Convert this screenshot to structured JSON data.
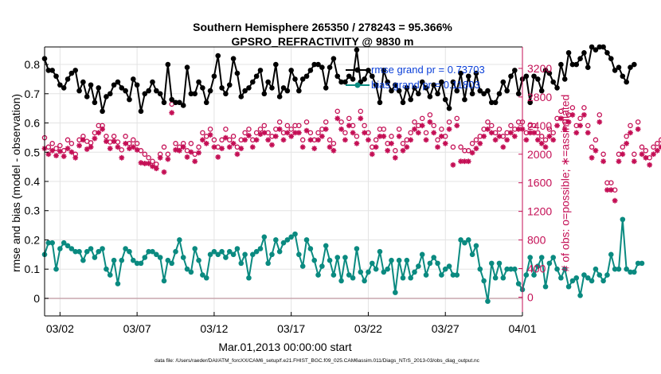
{
  "chart_data": {
    "type": "line",
    "title": "Southern Hemisphere 265350 / 278243 = 95.366%",
    "subtitle": "GPSRO_REFRACTIVITY @ 9830 m",
    "xlabel": "Mar.01,2013 00:00:00 start",
    "ylabel_left": "rmse and bias (model - observation)",
    "ylabel_right": "# of obs: o=possible; ∗=assimilated",
    "footer": "data file: /Users/raeder/DAI/ATM_forcXX/CAM6_setup/f.e21.FHIST_BGC.f09_025.CAM6assim.011/Diags_NTrS_2013-03/obs_diag_output.nc",
    "x_start": 0.5,
    "x_step": 0.25,
    "xlim": [
      0.5,
      31.5
    ],
    "ylim_left": [
      -0.06,
      0.86
    ],
    "ylim_right": [
      -262,
      3500
    ],
    "x_ticks": [
      {
        "value": 1.5,
        "label": "03/02"
      },
      {
        "value": 6.5,
        "label": "03/07"
      },
      {
        "value": 11.5,
        "label": "03/12"
      },
      {
        "value": 16.5,
        "label": "03/17"
      },
      {
        "value": 21.5,
        "label": "03/22"
      },
      {
        "value": 26.5,
        "label": "03/27"
      },
      {
        "value": 31.5,
        "label": "04/01"
      }
    ],
    "y_ticks_left": [
      {
        "value": 0,
        "label": "0"
      },
      {
        "value": 0.1,
        "label": "0.1"
      },
      {
        "value": 0.2,
        "label": "0.2"
      },
      {
        "value": 0.3,
        "label": "0.3"
      },
      {
        "value": 0.4,
        "label": "0.4"
      },
      {
        "value": 0.5,
        "label": "0.5"
      },
      {
        "value": 0.6,
        "label": "0.6"
      },
      {
        "value": 0.7,
        "label": "0.7"
      },
      {
        "value": 0.8,
        "label": "0.8"
      }
    ],
    "y_ticks_right": [
      {
        "value": 0,
        "label": "0"
      },
      {
        "value": 400,
        "label": "400"
      },
      {
        "value": 800,
        "label": "800"
      },
      {
        "value": 1200,
        "label": "1200"
      },
      {
        "value": 1600,
        "label": "1600"
      },
      {
        "value": 2000,
        "label": "2000"
      },
      {
        "value": 2400,
        "label": "2400"
      },
      {
        "value": 2800,
        "label": "2800"
      },
      {
        "value": 3200,
        "label": "3200"
      }
    ],
    "series": [
      {
        "name": "rmse grand pr = 0.73703",
        "axis": "left",
        "color": "#000000",
        "marker": "filled-circle",
        "values": [
          0.82,
          0.78,
          0.78,
          0.76,
          0.73,
          0.72,
          0.75,
          0.77,
          0.78,
          0.71,
          0.74,
          0.69,
          0.73,
          0.67,
          0.72,
          0.64,
          0.69,
          0.7,
          0.73,
          0.74,
          0.72,
          0.71,
          0.68,
          0.75,
          0.73,
          0.64,
          0.7,
          0.71,
          0.74,
          0.71,
          0.7,
          0.67,
          0.8,
          0.68,
          0.67,
          0.67,
          0.66,
          0.79,
          0.7,
          0.7,
          0.74,
          0.72,
          0.67,
          0.71,
          0.76,
          0.83,
          0.72,
          0.7,
          0.73,
          0.82,
          0.77,
          0.69,
          0.71,
          0.72,
          0.74,
          0.76,
          0.78,
          0.7,
          0.74,
          0.72,
          0.8,
          0.69,
          0.72,
          0.71,
          0.78,
          0.75,
          0.71,
          0.75,
          0.76,
          0.78,
          0.8,
          0.8,
          0.79,
          0.72,
          0.79,
          0.82,
          0.76,
          0.74,
          0.74,
          0.76,
          0.75,
          0.85,
          0.74,
          0.75,
          0.78,
          0.76,
          0.73,
          0.67,
          0.78,
          0.74,
          0.71,
          0.73,
          0.71,
          0.67,
          0.72,
          0.68,
          0.72,
          0.7,
          0.74,
          0.72,
          0.69,
          0.73,
          0.7,
          0.74,
          0.68,
          0.65,
          0.74,
          0.71,
          0.77,
          0.68,
          0.76,
          0.7,
          0.77,
          0.71,
          0.7,
          0.71,
          0.67,
          0.67,
          0.7,
          0.74,
          0.71,
          0.76,
          0.78,
          0.7,
          0.75,
          0.76,
          0.67,
          0.76,
          0.75,
          0.71,
          0.78,
          0.77,
          0.74,
          0.72,
          0.8,
          0.75,
          0.84,
          0.8,
          0.8,
          0.82,
          0.84,
          0.79,
          0.86,
          0.85,
          0.86,
          0.86,
          0.84,
          0.82,
          0.78,
          0.79,
          0.76,
          0.74,
          0.79,
          0.8
        ]
      },
      {
        "name": "bias grand pr = 0.11803",
        "axis": "left",
        "color": "#0a8a80",
        "marker": "filled-circle",
        "values": [
          0.15,
          0.19,
          0.19,
          0.1,
          0.17,
          0.19,
          0.18,
          0.17,
          0.16,
          0.16,
          0.13,
          0.16,
          0.17,
          0.14,
          0.16,
          0.17,
          0.1,
          0.08,
          0.13,
          0.05,
          0.13,
          0.17,
          0.16,
          0.13,
          0.12,
          0.12,
          0.14,
          0.16,
          0.16,
          0.15,
          0.14,
          0.06,
          0.13,
          0.12,
          0.16,
          0.2,
          0.14,
          0.1,
          0.09,
          0.17,
          0.13,
          0.08,
          0.07,
          0.15,
          0.16,
          0.15,
          0.16,
          0.14,
          0.16,
          0.15,
          0.17,
          0.12,
          0.15,
          0.07,
          0.15,
          0.16,
          0.17,
          0.21,
          0.12,
          0.15,
          0.2,
          0.16,
          0.19,
          0.2,
          0.21,
          0.22,
          0.15,
          0.11,
          0.2,
          0.17,
          0.13,
          0.08,
          0.11,
          0.18,
          0.13,
          0.08,
          0.14,
          0.06,
          0.14,
          0.08,
          0.07,
          0.17,
          0.09,
          0.06,
          0.09,
          0.12,
          0.1,
          0.16,
          0.09,
          0.1,
          0.13,
          0.02,
          0.13,
          0.07,
          0.13,
          0.07,
          0.09,
          0.11,
          0.15,
          0.08,
          0.12,
          0.14,
          0.12,
          0.08,
          0.1,
          0.11,
          0.08,
          0.08,
          0.2,
          0.19,
          0.2,
          0.15,
          0.18,
          0.1,
          0.06,
          -0.01,
          0.12,
          0.07,
          0.12,
          0.07,
          0.1,
          0.1,
          0.1,
          0.05,
          0.03,
          0.08,
          0.14,
          0.08,
          0.11,
          0.14,
          0.04,
          0.12,
          0.14,
          0.1,
          0.07,
          0.1,
          0.04,
          0.06,
          0.07,
          0.01,
          0.08,
          0.07,
          0.06,
          0.1,
          0.08,
          0.06,
          0.08,
          0.15,
          0.1,
          0.1,
          0.27,
          0.1,
          0.09,
          0.09,
          0.12,
          0.12
        ]
      },
      {
        "name": "possible",
        "axis": "right",
        "color": "#c40f55",
        "marker": "open-circle",
        "values": [
          2230,
          2100,
          2150,
          2080,
          2120,
          2050,
          2200,
          2150,
          2000,
          2200,
          2250,
          2180,
          2160,
          2300,
          2400,
          2400,
          2250,
          2170,
          2250,
          2170,
          2060,
          2250,
          2150,
          2200,
          2150,
          2050,
          2000,
          1950,
          1900,
          1860,
          2000,
          2100,
          2000,
          2700,
          2150,
          2100,
          2150,
          2050,
          2150,
          2000,
          2100,
          2300,
          2250,
          2350,
          2200,
          2100,
          2200,
          2350,
          2200,
          2250,
          2100,
          2200,
          2300,
          2350,
          2200,
          2300,
          2350,
          2400,
          2300,
          2250,
          2350,
          2450,
          2300,
          2400,
          2350,
          2400,
          2400,
          2200,
          2450,
          2300,
          2200,
          2300,
          2350,
          2450,
          2200,
          2150,
          2600,
          2450,
          2300,
          2500,
          2400,
          2250,
          2600,
          2400,
          2300,
          2100,
          2200,
          2350,
          2350,
          2150,
          2250,
          2050,
          2350,
          2150,
          2200,
          2300,
          2450,
          2400,
          2500,
          2300,
          2550,
          2400,
          2200,
          2350,
          2250,
          2450,
          2100,
          2500,
          2100,
          2050,
          2050,
          2150,
          2200,
          2250,
          2350,
          2450,
          2400,
          2300,
          2350,
          2250,
          2300,
          2400,
          2350,
          2450,
          2450,
          2300,
          2400,
          2400,
          2300,
          2250,
          2200,
          2350,
          2300,
          2500,
          2600,
          2450,
          2550,
          2650,
          2400,
          2500,
          2650,
          2400,
          2100,
          2200,
          2550,
          2000,
          1600,
          1600,
          1500,
          2000,
          2100,
          2250,
          2400,
          2000,
          2450,
          2100,
          2050,
          1950,
          2100,
          2150,
          2200,
          0
        ]
      },
      {
        "name": "assimilated",
        "axis": "right",
        "color": "#c40f55",
        "marker": "asterisk",
        "values": [
          2080,
          2000,
          2050,
          1980,
          2040,
          1970,
          2080,
          2030,
          1950,
          2120,
          2200,
          2070,
          2100,
          2220,
          2300,
          2350,
          2180,
          2080,
          2180,
          2100,
          1950,
          2150,
          2080,
          2100,
          2060,
          1880,
          1870,
          1870,
          1830,
          1800,
          1950,
          1750,
          1930,
          2580,
          2060,
          2050,
          2100,
          1960,
          2030,
          1900,
          2020,
          2200,
          2150,
          2270,
          2100,
          1960,
          2080,
          2230,
          2100,
          2150,
          2000,
          2080,
          2200,
          2260,
          2100,
          2200,
          2280,
          2300,
          2200,
          2130,
          2250,
          2350,
          2200,
          2300,
          2250,
          2300,
          2300,
          2100,
          2330,
          2200,
          2080,
          2200,
          2250,
          2350,
          2100,
          2050,
          2500,
          2350,
          2200,
          2400,
          2300,
          2150,
          2500,
          2300,
          2200,
          2000,
          2100,
          2250,
          2250,
          2050,
          2150,
          1950,
          2250,
          2050,
          2100,
          2200,
          2350,
          2300,
          2400,
          2200,
          2450,
          2300,
          2100,
          2250,
          2150,
          2350,
          1850,
          2400,
          1900,
          1900,
          1900,
          2020,
          2080,
          2150,
          2250,
          2350,
          2300,
          2200,
          2250,
          2100,
          2200,
          2300,
          2250,
          2350,
          2350,
          2200,
          2300,
          2300,
          2200,
          2150,
          2100,
          2250,
          2200,
          2400,
          2500,
          2350,
          2450,
          2550,
          2300,
          2400,
          2550,
          2300,
          1950,
          2050,
          2450,
          1900,
          1500,
          1500,
          1350,
          1900,
          2000,
          2150,
          2300,
          1900,
          2350,
          2000,
          1950,
          1850,
          2000,
          2050,
          2100,
          0
        ]
      }
    ]
  }
}
